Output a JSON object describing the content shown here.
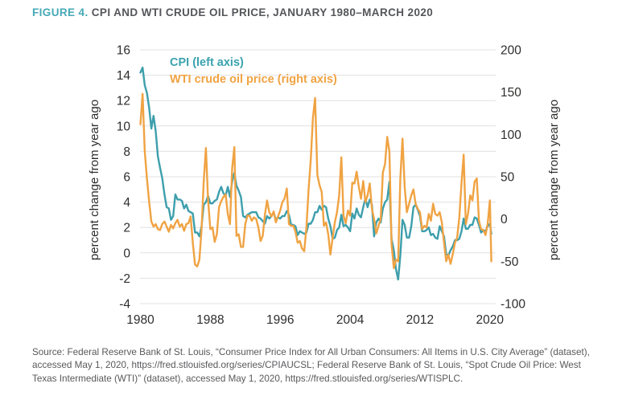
{
  "figure": {
    "label": "FIGURE 4.",
    "title": "CPI AND WTI CRUDE OIL PRICE, JANUARY 1980–MARCH 2020"
  },
  "legend": {
    "cpi": "CPI (left axis)",
    "wti": "WTI crude oil price (right axis)"
  },
  "source": {
    "text": "Source: Federal Reserve Bank of St. Louis, “Consumer Price Index for All Urban Consumers: All Items in U.S. City Average” (dataset), accessed May 1, 2020, https://fred.stlouisfed.org/series/CPIAUCSL; Federal Reserve Bank of St. Louis, “Spot Crude Oil Price: West Texas Intermediate (WTI)” (dataset), accessed May 1, 2020, https://fred.stlouisfed.org/series/WTISPLC."
  },
  "colors": {
    "cpi_teal": "#3d9fac",
    "wti_orange": "#f0a343",
    "title_accent": "#45a9b6",
    "title_gray": "#55565a",
    "tick_label": "#2e2d2c",
    "grid": "#e0e0e0",
    "source_gray": "#59595c"
  },
  "chart_data": {
    "type": "line",
    "title": "CPI and WTI crude oil price, January 1980–March 2020",
    "grid": "horizontal-only",
    "legend_position": "top-left-inside",
    "x_axis": {
      "ticks": [
        1980,
        1988,
        1996,
        2004,
        2012,
        2020
      ],
      "range": [
        1980,
        2020.25
      ]
    },
    "left_axis": {
      "label": "percent change from year ago",
      "ticks": [
        16,
        14,
        12,
        10,
        8,
        6,
        4,
        2,
        0,
        -2,
        -4
      ],
      "range": [
        -4,
        16
      ]
    },
    "right_axis": {
      "label": "percent change from year ago",
      "ticks": [
        200,
        150,
        100,
        50,
        0,
        -50,
        -100
      ],
      "range": [
        -100,
        200
      ]
    },
    "series": [
      {
        "name": "CPI (left axis)",
        "axis": "left",
        "color": "#3d9fac",
        "start_year": 1980,
        "step_years": 0.25,
        "values": [
          14.2,
          14.6,
          13.2,
          12.6,
          11.4,
          9.8,
          10.8,
          9.6,
          7.6,
          6.7,
          5.9,
          4.6,
          3.6,
          3.5,
          2.6,
          2.9,
          4.6,
          4.2,
          4.2,
          4.1,
          3.5,
          3.8,
          3.3,
          3.2,
          3.1,
          1.6,
          1.6,
          1.3,
          2.1,
          3.8,
          4.0,
          4.5,
          3.9,
          3.9,
          4.1,
          4.2,
          4.8,
          5.2,
          4.7,
          4.5,
          5.2,
          4.4,
          5.6,
          6.3,
          5.3,
          4.9,
          4.4,
          2.9,
          2.8,
          3.0,
          3.1,
          3.2,
          3.2,
          3.2,
          2.8,
          2.7,
          2.5,
          2.3,
          2.9,
          2.7,
          2.9,
          3.2,
          2.6,
          2.8,
          2.7,
          2.9,
          2.9,
          3.3,
          3.0,
          2.2,
          2.2,
          2.1,
          1.4,
          1.7,
          1.6,
          1.5,
          1.6,
          2.3,
          2.3,
          2.6,
          3.2,
          3.2,
          3.7,
          3.4,
          3.7,
          3.6,
          2.7,
          2.1,
          1.1,
          1.2,
          1.8,
          2.0,
          3.0,
          2.1,
          2.2,
          2.0,
          1.7,
          3.1,
          2.7,
          3.5,
          3.0,
          2.8,
          3.6,
          4.3,
          3.6,
          4.2,
          3.8,
          1.3,
          2.4,
          2.7,
          2.4,
          3.5,
          4.0,
          4.2,
          5.6,
          1.1,
          0.2,
          -1.3,
          -2.1,
          -0.2,
          2.6,
          2.2,
          1.2,
          1.2,
          2.1,
          3.6,
          3.8,
          3.4,
          2.9,
          1.7,
          1.7,
          1.8,
          2.0,
          1.4,
          1.5,
          1.2,
          1.1,
          2.1,
          1.7,
          1.3,
          -0.1,
          -0.2,
          0.2,
          0.5,
          1.0,
          1.0,
          1.1,
          1.7,
          2.7,
          1.9,
          1.9,
          2.2,
          2.2,
          2.8,
          2.7,
          2.2,
          1.6,
          1.8,
          1.7,
          2.1,
          2.3
        ],
        "end_point": {
          "x": 2020.17,
          "y": 1.5
        }
      },
      {
        "name": "WTI crude oil price (right axis)",
        "axis": "right",
        "color": "#f0a343",
        "start_year": 1980,
        "step_years": 0.25,
        "values": [
          112,
          148,
          80,
          48,
          20,
          -3,
          -9,
          -6,
          -12,
          -13,
          -6,
          -3,
          -9,
          -15,
          -7,
          -11,
          -5,
          -1,
          -9,
          -6,
          -14,
          -6,
          -5,
          3,
          -28,
          -54,
          -56,
          -48,
          -12,
          45,
          84,
          22,
          -12,
          -10,
          -27,
          -18,
          14,
          21,
          26,
          29,
          6,
          -6,
          60,
          85,
          -20,
          -18,
          -33,
          -33,
          -6,
          4,
          4,
          -2,
          2,
          0,
          -10,
          -26,
          -20,
          5,
          22,
          8,
          3,
          9,
          -4,
          3,
          10,
          20,
          24,
          36,
          -6,
          -8,
          -8,
          -15,
          -28,
          -26,
          -35,
          -38,
          -10,
          35,
          70,
          120,
          143,
          52,
          40,
          32,
          -8,
          -4,
          -18,
          -42,
          -22,
          -4,
          8,
          28,
          73,
          4,
          -5,
          10,
          4,
          43,
          42,
          56,
          38,
          24,
          45,
          20,
          28,
          42,
          12,
          0,
          -17,
          -8,
          0,
          55,
          65,
          97,
          80,
          -30,
          -58,
          -48,
          -50,
          48,
          95,
          38,
          8,
          18,
          28,
          35,
          18,
          12,
          8,
          -12,
          -8,
          -10,
          6,
          -2,
          18,
          6,
          4,
          8,
          -4,
          -28,
          -50,
          -42,
          -53,
          -42,
          -28,
          -22,
          2,
          42,
          76,
          -6,
          6,
          28,
          22,
          44,
          48,
          -2,
          -12,
          -13,
          -19,
          -5,
          22
        ],
        "end_point": {
          "x": 2020.17,
          "y": -50
        }
      }
    ]
  }
}
